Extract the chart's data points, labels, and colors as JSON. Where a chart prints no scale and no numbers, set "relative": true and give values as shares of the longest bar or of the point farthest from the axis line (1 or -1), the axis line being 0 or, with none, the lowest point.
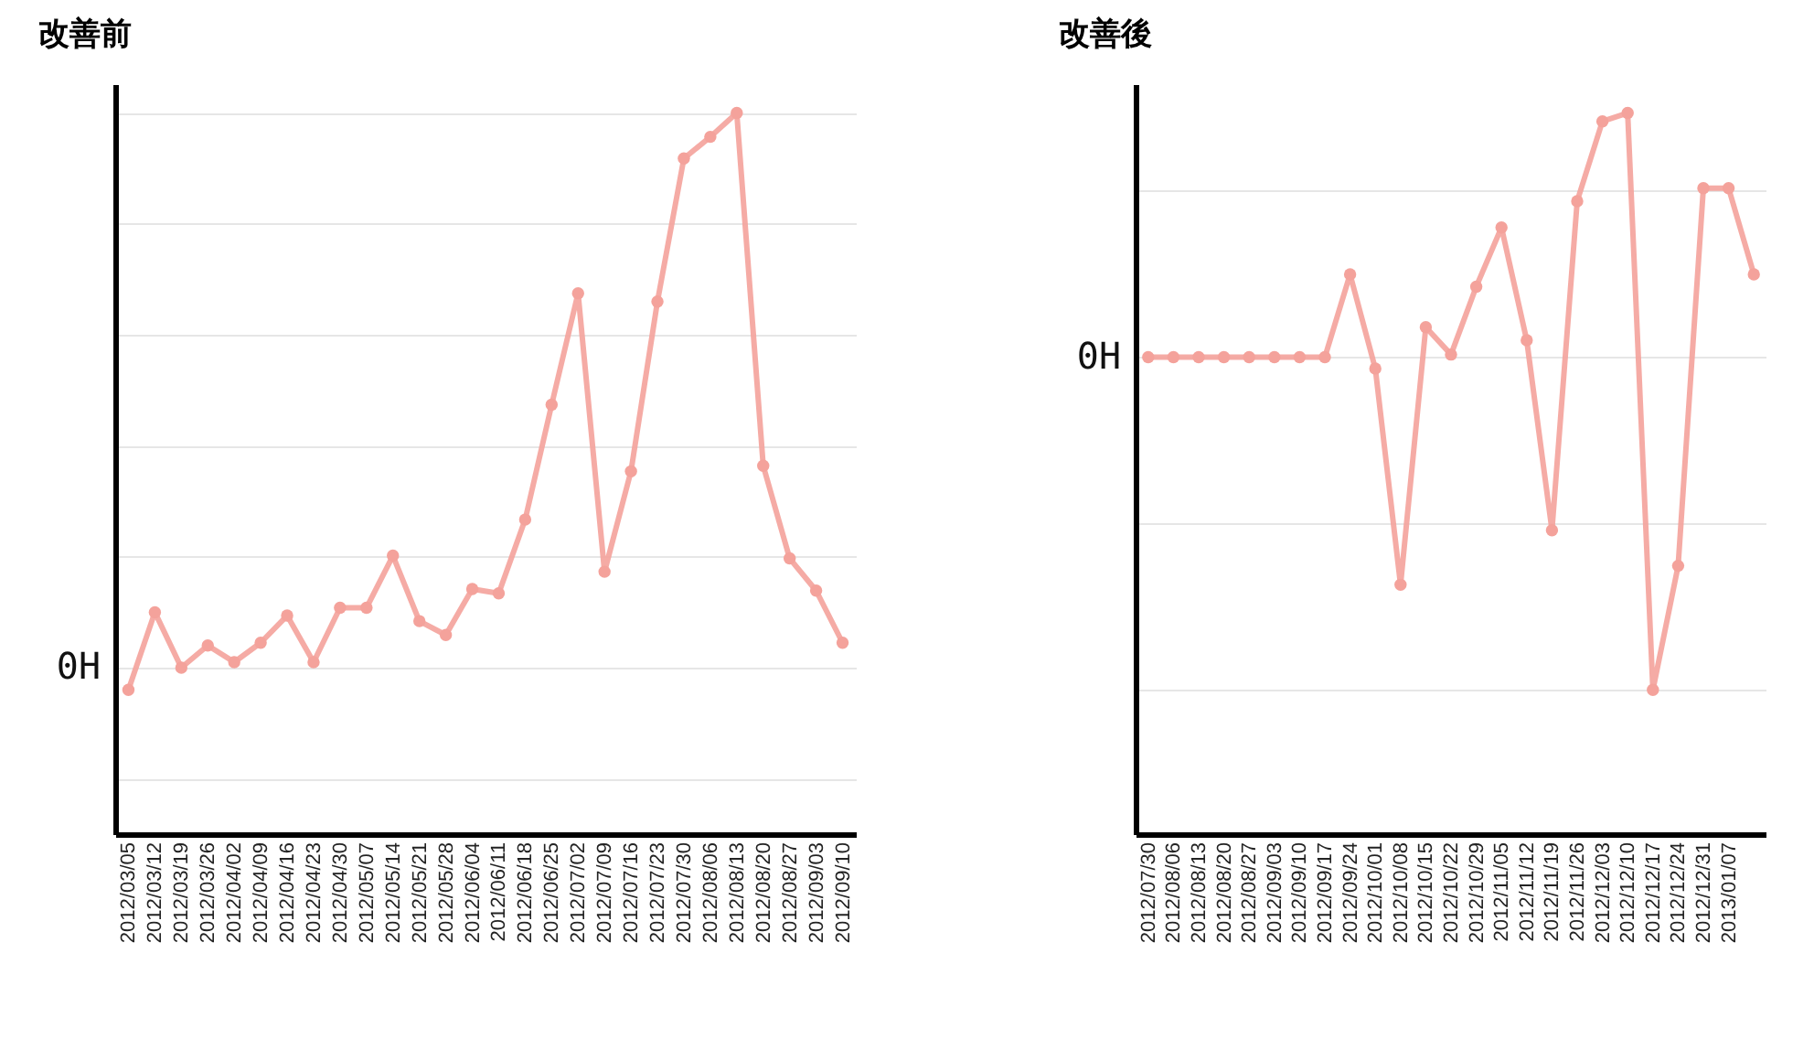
{
  "chart_data": [
    {
      "type": "line",
      "title": "改善前",
      "relative": true,
      "grid": true,
      "marker": "circle",
      "categories": [
        "2012/03/05",
        "2012/03/12",
        "2012/03/19",
        "2012/03/26",
        "2012/04/02",
        "2012/04/09",
        "2012/04/16",
        "2012/04/23",
        "2012/04/30",
        "2012/05/07",
        "2012/05/14",
        "2012/05/21",
        "2012/05/28",
        "2012/06/04",
        "2012/06/11",
        "2012/06/18",
        "2012/06/25",
        "2012/07/02",
        "2012/07/09",
        "2012/07/16",
        "2012/07/23",
        "2012/07/30",
        "2012/08/06",
        "2012/08/13",
        "2012/08/20",
        "2012/08/27",
        "2012/09/03",
        "2012/09/10"
      ],
      "series": [
        {
          "color": "#f4a29b",
          "values": [
            -0.04,
            0.1,
            0,
            0.04,
            0.01,
            0.045,
            0.094,
            0.01,
            0.108,
            0.108,
            0.202,
            0.084,
            0.059,
            0.142,
            0.134,
            0.267,
            0.474,
            0.675,
            0.173,
            0.354,
            0.66,
            0.918,
            0.957,
            1,
            0.364,
            0.197,
            0.139,
            0.045
          ]
        }
      ],
      "annotations": [
        "0H"
      ]
    },
    {
      "type": "line",
      "title": "改善後",
      "relative": true,
      "grid": true,
      "marker": "circle",
      "categories": [
        "2012/07/30",
        "2012/08/06",
        "2012/08/13",
        "2012/08/20",
        "2012/08/27",
        "2012/09/03",
        "2012/09/10",
        "2012/09/17",
        "2012/09/24",
        "2012/10/01",
        "2012/10/08",
        "2012/10/15",
        "2012/10/22",
        "2012/10/29",
        "2012/11/05",
        "2012/11/12",
        "2012/11/19",
        "2012/11/26",
        "2012/12/03",
        "2012/12/10",
        "2012/12/17",
        "2012/12/24",
        "2012/12/31",
        "2013/01/07",
        null
      ],
      "series": [
        {
          "color": "#f4a29b",
          "values": [
            0,
            0,
            0,
            0,
            0,
            0,
            0,
            0,
            0.249,
            -0.034,
            -0.684,
            0.09,
            0.008,
            0.212,
            0.39,
            0.051,
            -0.52,
            0.469,
            0.709,
            0.734,
            -1,
            -0.627,
            0.508,
            0.508,
            0.249
          ]
        }
      ],
      "annotations": [
        "0H"
      ]
    }
  ]
}
